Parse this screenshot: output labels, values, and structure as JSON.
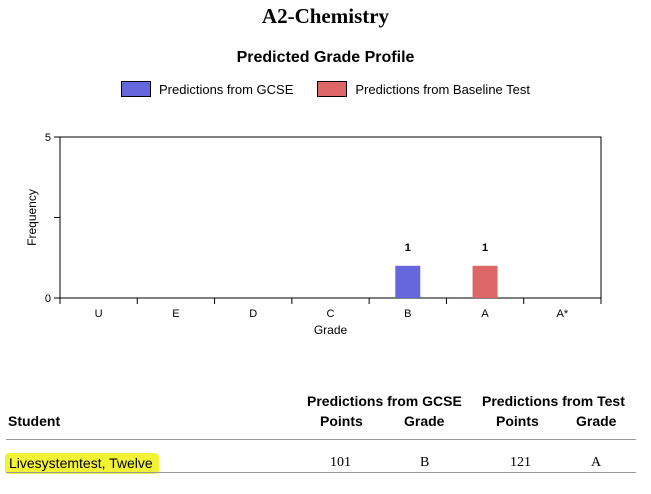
{
  "report": {
    "title": "A2-Chemistry"
  },
  "chart_data": {
    "type": "bar",
    "title": "Predicted Grade Profile",
    "xlabel": "Grade",
    "ylabel": "Frequency",
    "categories": [
      "U",
      "E",
      "D",
      "C",
      "B",
      "A",
      "A*"
    ],
    "ylim": [
      0,
      5
    ],
    "yticks": [
      "0",
      "",
      "5"
    ],
    "legend_position": "top",
    "series": [
      {
        "name": "Predictions from GCSE",
        "color": "#6666dd",
        "values": [
          0,
          0,
          0,
          0,
          1,
          0,
          0
        ]
      },
      {
        "name": "Predictions from Baseline Test",
        "color": "#dd6666",
        "values": [
          0,
          0,
          0,
          0,
          0,
          1,
          0
        ]
      }
    ],
    "grid": false
  },
  "table": {
    "student_header": "Student",
    "group1_header": "Predictions from GCSE",
    "group2_header": "Predictions from Test",
    "points_header": "Points",
    "grade_header": "Grade",
    "rows": [
      {
        "student": "Livesystemtest, Twelve",
        "gcse_points": "101",
        "gcse_grade": "B",
        "test_points": "121",
        "test_grade": "A"
      }
    ]
  }
}
